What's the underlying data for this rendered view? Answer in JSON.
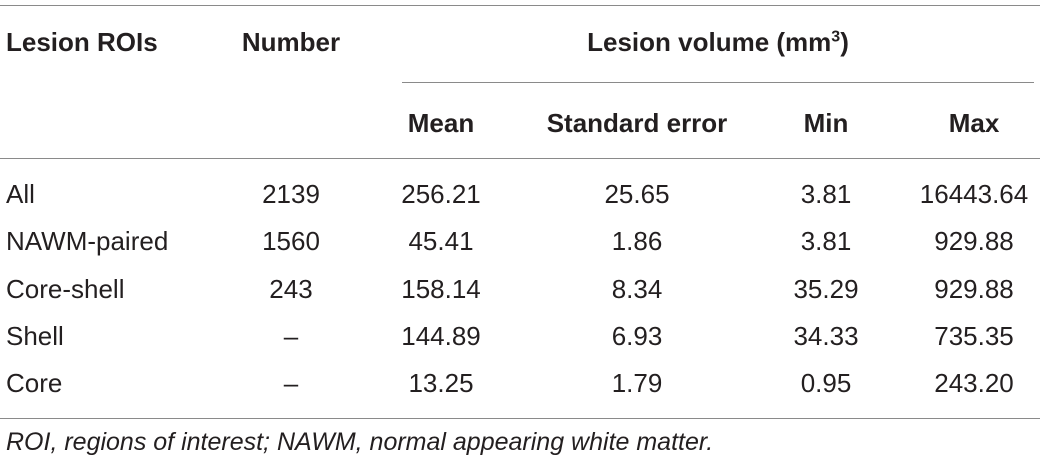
{
  "table": {
    "headers": {
      "lesion_rois": "Lesion ROIs",
      "number": "Number",
      "lesion_volume": "Lesion volume (mm",
      "lesion_volume_sup": "3",
      "lesion_volume_close": ")",
      "mean": "Mean",
      "standard_error": "Standard error",
      "min": "Min",
      "max": "Max"
    },
    "rows": [
      {
        "roi": "All",
        "number": "2139",
        "mean": "256.21",
        "se": "25.65",
        "min": "3.81",
        "max": "16443.64"
      },
      {
        "roi": "NAWM-paired",
        "number": "1560",
        "mean": "45.41",
        "se": "1.86",
        "min": "3.81",
        "max": "929.88"
      },
      {
        "roi": "Core-shell",
        "number": "243",
        "mean": "158.14",
        "se": "8.34",
        "min": "35.29",
        "max": "929.88"
      },
      {
        "roi": "Shell",
        "number": "–",
        "mean": "144.89",
        "se": "6.93",
        "min": "34.33",
        "max": "735.35"
      },
      {
        "roi": "Core",
        "number": "–",
        "mean": "13.25",
        "se": "1.79",
        "min": "0.95",
        "max": "243.20"
      }
    ],
    "footnote": "ROI, regions of interest; NAWM, normal appearing white matter."
  }
}
